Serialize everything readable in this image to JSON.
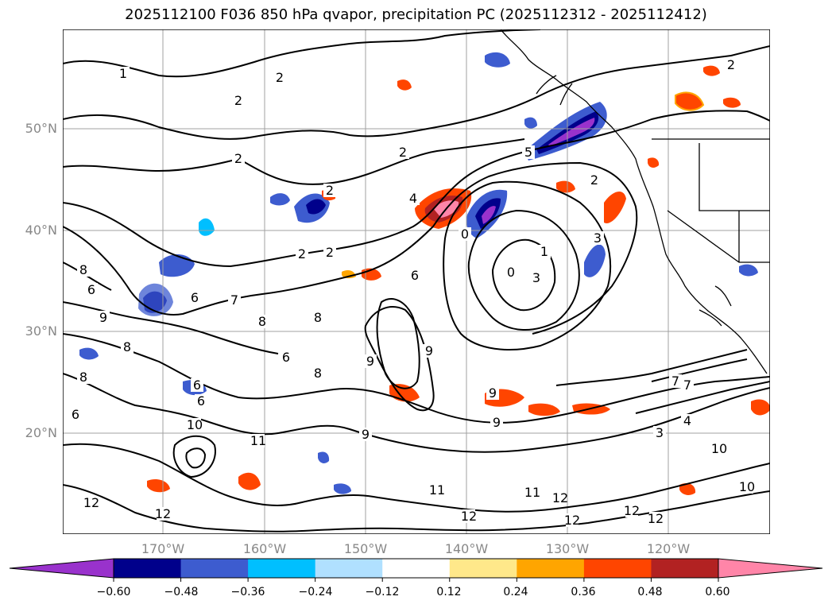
{
  "title": "2025112100 F036 850 hPa qvapor, precipitation PC (2025112312 - 2025112412)",
  "map": {
    "lat_labels": [
      "50°N",
      "40°N",
      "30°N",
      "20°N"
    ],
    "lon_labels": [
      "170°W",
      "160°W",
      "150°W",
      "140°W",
      "130°W",
      "120°W"
    ],
    "contour_labels": [
      "1",
      "2",
      "2",
      "2",
      "2",
      "2",
      "5",
      "2",
      "2",
      "2",
      "4",
      "0",
      "1",
      "0",
      "3",
      "2",
      "3",
      "6",
      "7",
      "7",
      "8",
      "8",
      "8",
      "8",
      "9",
      "9",
      "9",
      "9",
      "9",
      "6",
      "6",
      "6",
      "8",
      "10",
      "11",
      "11",
      "12",
      "12",
      "12",
      "12",
      "12",
      "12",
      "12",
      "11",
      "10",
      "10",
      "4",
      "3",
      "7",
      "8",
      "6",
      "6",
      "6",
      "9"
    ],
    "colors": {
      "land_outline": "#000000",
      "grid": "#a0a0a0",
      "contour": "#000000"
    }
  },
  "colorbar": {
    "ticks": [
      "−0.60",
      "−0.48",
      "−0.36",
      "−0.24",
      "−0.12",
      "0.12",
      "0.24",
      "0.36",
      "0.48",
      "0.60"
    ],
    "bins": [
      {
        "color": "#9932cc"
      },
      {
        "color": "#00008b"
      },
      {
        "color": "#3d5ccf"
      },
      {
        "color": "#00bfff"
      },
      {
        "color": "#b0e0ff"
      },
      {
        "color": "#ffffff"
      },
      {
        "color": "#ffe88a"
      },
      {
        "color": "#ffa500"
      },
      {
        "color": "#ff4500"
      },
      {
        "color": "#b22222"
      },
      {
        "color": "#ff85a8"
      }
    ]
  }
}
